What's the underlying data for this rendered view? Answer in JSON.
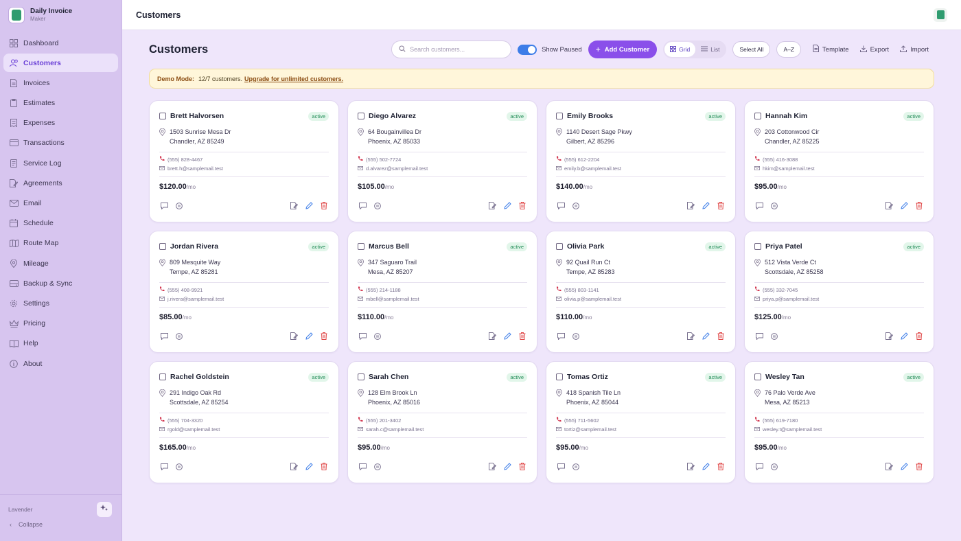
{
  "brand": {
    "name": "Daily Invoice",
    "sub": "Maker"
  },
  "nav": [
    {
      "label": "Dashboard",
      "icon": "grid-icon",
      "active": false
    },
    {
      "label": "Customers",
      "icon": "users-icon",
      "active": true
    },
    {
      "label": "Invoices",
      "icon": "file-icon",
      "active": false
    },
    {
      "label": "Estimates",
      "icon": "clipboard-icon",
      "active": false
    },
    {
      "label": "Expenses",
      "icon": "receipt-icon",
      "active": false
    },
    {
      "label": "Transactions",
      "icon": "card-icon",
      "active": false
    },
    {
      "label": "Service Log",
      "icon": "log-icon",
      "active": false
    },
    {
      "label": "Agreements",
      "icon": "document-edit-icon",
      "active": false
    },
    {
      "label": "Email",
      "icon": "mail-icon",
      "active": false
    },
    {
      "label": "Schedule",
      "icon": "calendar-icon",
      "active": false
    },
    {
      "label": "Route Map",
      "icon": "map-icon",
      "active": false
    },
    {
      "label": "Mileage",
      "icon": "pin-icon",
      "active": false
    },
    {
      "label": "Backup & Sync",
      "icon": "drive-icon",
      "active": false
    },
    {
      "label": "Settings",
      "icon": "gear-icon",
      "active": false
    },
    {
      "label": "Pricing",
      "icon": "crown-icon",
      "active": false
    },
    {
      "label": "Help",
      "icon": "book-icon",
      "active": false
    },
    {
      "label": "About",
      "icon": "info-icon",
      "active": false
    }
  ],
  "sidebar_bottom": {
    "theme": "Lavender",
    "collapse": "Collapse"
  },
  "header": {
    "title": "Customers"
  },
  "toolbar": {
    "title": "Customers",
    "search_placeholder": "Search customers...",
    "show_paused": "Show Paused",
    "add_customer": "Add Customer",
    "view_grid": "Grid",
    "view_list": "List",
    "select_all": "Select All",
    "sort": "A–Z",
    "template": "Template",
    "export": "Export",
    "import": "Import"
  },
  "banner": {
    "label": "Demo Mode:",
    "text": "12/7 customers.",
    "link": "Upgrade for unlimited customers."
  },
  "per_label": "/mo",
  "customers": [
    {
      "name": "Brett Halvorsen",
      "status": "active",
      "addr1": "1503 Sunrise Mesa Dr",
      "addr2": "Chandler, AZ 85249",
      "phone": "(555) 828-4467",
      "email": "brett.h@samplemail.test",
      "price": "$120.00"
    },
    {
      "name": "Diego Alvarez",
      "status": "active",
      "addr1": "64 Bougainvillea Dr",
      "addr2": "Phoenix, AZ 85033",
      "phone": "(555) 502-7724",
      "email": "d.alvarez@samplemail.test",
      "price": "$105.00"
    },
    {
      "name": "Emily Brooks",
      "status": "active",
      "addr1": "1140 Desert Sage Pkwy",
      "addr2": "Gilbert, AZ 85296",
      "phone": "(555) 612-2204",
      "email": "emily.b@samplemail.test",
      "price": "$140.00"
    },
    {
      "name": "Hannah Kim",
      "status": "active",
      "addr1": "203 Cottonwood Cir",
      "addr2": "Chandler, AZ 85225",
      "phone": "(555) 416-3088",
      "email": "hkim@samplemail.test",
      "price": "$95.00"
    },
    {
      "name": "Jordan Rivera",
      "status": "active",
      "addr1": "809 Mesquite Way",
      "addr2": "Tempe, AZ 85281",
      "phone": "(555) 408-9921",
      "email": "j.rivera@samplemail.test",
      "price": "$85.00"
    },
    {
      "name": "Marcus Bell",
      "status": "active",
      "addr1": "347 Saguaro Trail",
      "addr2": "Mesa, AZ 85207",
      "phone": "(555) 214-1188",
      "email": "mbell@samplemail.test",
      "price": "$110.00"
    },
    {
      "name": "Olivia Park",
      "status": "active",
      "addr1": "92 Quail Run Ct",
      "addr2": "Tempe, AZ 85283",
      "phone": "(555) 803-1141",
      "email": "olivia.p@samplemail.test",
      "price": "$110.00"
    },
    {
      "name": "Priya Patel",
      "status": "active",
      "addr1": "512 Vista Verde Ct",
      "addr2": "Scottsdale, AZ 85258",
      "phone": "(555) 332-7045",
      "email": "priya.p@samplemail.test",
      "price": "$125.00"
    },
    {
      "name": "Rachel Goldstein",
      "status": "active",
      "addr1": "291 Indigo Oak Rd",
      "addr2": "Scottsdale, AZ 85254",
      "phone": "(555) 704-3320",
      "email": "rgold@samplemail.test",
      "price": "$165.00"
    },
    {
      "name": "Sarah Chen",
      "status": "active",
      "addr1": "128 Elm Brook Ln",
      "addr2": "Phoenix, AZ 85016",
      "phone": "(555) 201-3402",
      "email": "sarah.c@samplemail.test",
      "price": "$95.00"
    },
    {
      "name": "Tomas Ortiz",
      "status": "active",
      "addr1": "418 Spanish Tile Ln",
      "addr2": "Phoenix, AZ 85044",
      "phone": "(555) 711-5602",
      "email": "tortiz@samplemail.test",
      "price": "$95.00"
    },
    {
      "name": "Wesley Tan",
      "status": "active",
      "addr1": "76 Palo Verde Ave",
      "addr2": "Mesa, AZ 85213",
      "phone": "(555) 619-7180",
      "email": "wesley.t@samplemail.test",
      "price": "$95.00"
    }
  ]
}
